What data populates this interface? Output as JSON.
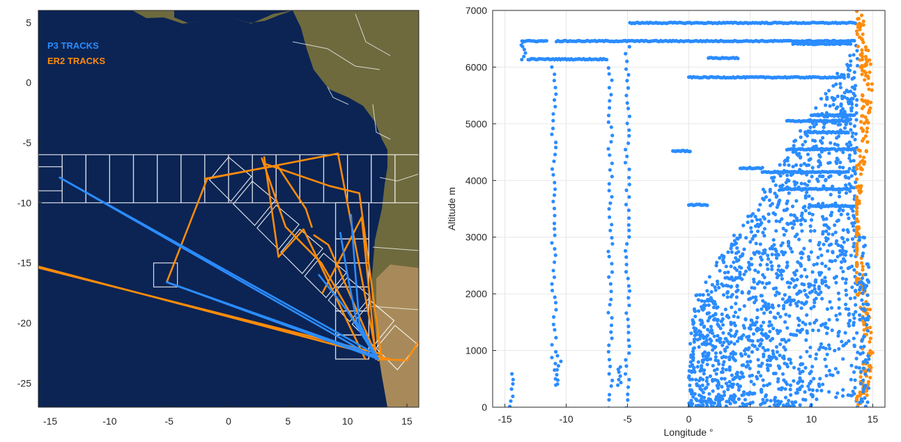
{
  "chart_data": [
    {
      "type": "map",
      "xlim": [
        -16,
        16
      ],
      "ylim": [
        -27,
        6
      ],
      "xticks": [
        -15,
        -10,
        -5,
        0,
        5,
        10,
        15
      ],
      "yticks": [
        5,
        0,
        -5,
        -10,
        -15,
        -20,
        -25
      ],
      "xlabel": "",
      "ylabel": "",
      "legend_position": "top-left",
      "series": [
        {
          "name": "P3 TRACKS",
          "color": "#2b8cff",
          "tracks": [
            [
              [
                -14.2,
                -7.9
              ],
              [
                12.5,
                -23.0
              ]
            ],
            [
              [
                -14.2,
                -7.9
              ],
              [
                12.4,
                -22.6
              ]
            ],
            [
              [
                -5.2,
                -16.6
              ],
              [
                12.6,
                -23.0
              ]
            ],
            [
              [
                -5.2,
                -16.6
              ],
              [
                12.3,
                -22.7
              ]
            ],
            [
              [
                9.4,
                -12.5
              ],
              [
                10.0,
                -16.0
              ],
              [
                10.8,
                -20.0
              ],
              [
                12.6,
                -23.0
              ]
            ],
            [
              [
                10.3,
                -11.0
              ],
              [
                10.6,
                -15.0
              ],
              [
                11.0,
                -20.0
              ],
              [
                12.4,
                -22.8
              ]
            ],
            [
              [
                7.6,
                -16.0
              ],
              [
                10.0,
                -19.0
              ],
              [
                12.5,
                -23.0
              ]
            ]
          ]
        },
        {
          "name": "ER2 TRACKS",
          "color": "#ff8c0a",
          "tracks": [
            [
              [
                -16,
                -15.3
              ],
              [
                13.5,
                -23.0
              ]
            ],
            [
              [
                -16,
                -15.4
              ],
              [
                12.9,
                -22.6
              ]
            ],
            [
              [
                -5.2,
                -16.6
              ],
              [
                -1.8,
                -8.0
              ],
              [
                9.2,
                -5.9
              ],
              [
                12.5,
                -23.0
              ]
            ],
            [
              [
                -5.2,
                -16.6
              ],
              [
                13.0,
                -23.0
              ]
            ],
            [
              [
                3.0,
                -6.2
              ],
              [
                4.2,
                -14.5
              ],
              [
                6.3,
                -12.2
              ],
              [
                11.5,
                -23.0
              ]
            ],
            [
              [
                3.2,
                -6.8
              ],
              [
                8.5,
                -8.6
              ],
              [
                11.0,
                -9.2
              ],
              [
                12.8,
                -22.5
              ]
            ],
            [
              [
                2.8,
                -6.3
              ],
              [
                4.8,
                -12.0
              ],
              [
                7.8,
                -15.0
              ],
              [
                12.4,
                -22.9
              ]
            ],
            [
              [
                7.2,
                -12.7
              ],
              [
                8.4,
                -13.5
              ],
              [
                12.6,
                -23.1
              ]
            ],
            [
              [
                7.9,
                -17.5
              ],
              [
                11.2,
                -11.2
              ],
              [
                12.4,
                -23.0
              ]
            ],
            [
              [
                -2.0,
                -8.0
              ],
              [
                4.1,
                -6.9
              ],
              [
                6.5,
                -10.5
              ],
              [
                7.0,
                -12.0
              ]
            ],
            [
              [
                12.5,
                -23.0
              ],
              [
                15.0,
                -23.1
              ],
              [
                16,
                -21.5
              ]
            ]
          ]
        }
      ],
      "grid_boxes": {
        "row_y": [
          -6,
          -10
        ],
        "row_x": [
          -16,
          -14,
          -12,
          -10,
          -8,
          -6,
          -4,
          -2,
          0,
          2,
          4,
          6,
          8,
          10,
          12,
          14,
          16
        ],
        "column_x": [
          9,
          11.8
        ],
        "column_y": [
          -10,
          -13,
          -15,
          -17,
          -19,
          -21,
          -23
        ],
        "singles": [
          [
            -16,
            -7
          ],
          [
            -6.3,
            -15
          ]
        ],
        "diagonal_start": [
          0,
          -7.8
        ],
        "diagonal_step": [
          2,
          -2
        ],
        "diagonal_count": 8
      },
      "land_color": "#6e6a3e",
      "ocean_color": "#0b2454"
    },
    {
      "type": "scatter",
      "xlabel": "Longitude °",
      "ylabel": "Altitude m",
      "xlim": [
        -16,
        16
      ],
      "ylim": [
        0,
        7000
      ],
      "xticks": [
        -15,
        -10,
        -5,
        0,
        5,
        10,
        15
      ],
      "yticks": [
        0,
        1000,
        2000,
        3000,
        4000,
        5000,
        6000,
        7000
      ],
      "grid": true,
      "series": [
        {
          "name": "P3",
          "color": "#2b8cff",
          "level_segments": [
            [
              -13.6,
              -11.6,
              6460
            ],
            [
              -13.1,
              -6.7,
              6140
            ],
            [
              -10.8,
              13.5,
              6460
            ],
            [
              -4.8,
              13.6,
              6780
            ],
            [
              0.0,
              12.6,
              5820
            ],
            [
              1.6,
              4.0,
              6160
            ],
            [
              8.5,
              13.2,
              6410
            ],
            [
              -1.3,
              0.1,
              4520
            ],
            [
              0.0,
              1.5,
              3570
            ],
            [
              10.0,
              13.5,
              5150
            ],
            [
              8.0,
              13.0,
              5050
            ],
            [
              9.5,
              13.0,
              4850
            ],
            [
              8.0,
              13.5,
              4550
            ],
            [
              6.0,
              13.0,
              4150
            ],
            [
              10.0,
              13.5,
              3550
            ],
            [
              7.5,
              13.0,
              3850
            ],
            [
              4.2,
              6.0,
              4220
            ]
          ],
          "column_segments": [
            [
              -14.5,
              0,
              600
            ],
            [
              -13.5,
              6140,
              6460
            ],
            [
              -11.0,
              400,
              6000
            ],
            [
              -10.6,
              400,
              900
            ],
            [
              -6.4,
              0,
              6000
            ],
            [
              -5.7,
              400,
              700
            ],
            [
              -5.0,
              0,
              6460
            ],
            [
              13.6,
              0,
              6400
            ]
          ],
          "band_x": [
            0,
            13.6
          ],
          "band_y": [
            0,
            6400
          ]
        },
        {
          "name": "ER2",
          "color": "#ff8c0a",
          "column_x": [
            13.7,
            15.2
          ],
          "column_y": [
            0,
            7000
          ]
        }
      ]
    }
  ]
}
